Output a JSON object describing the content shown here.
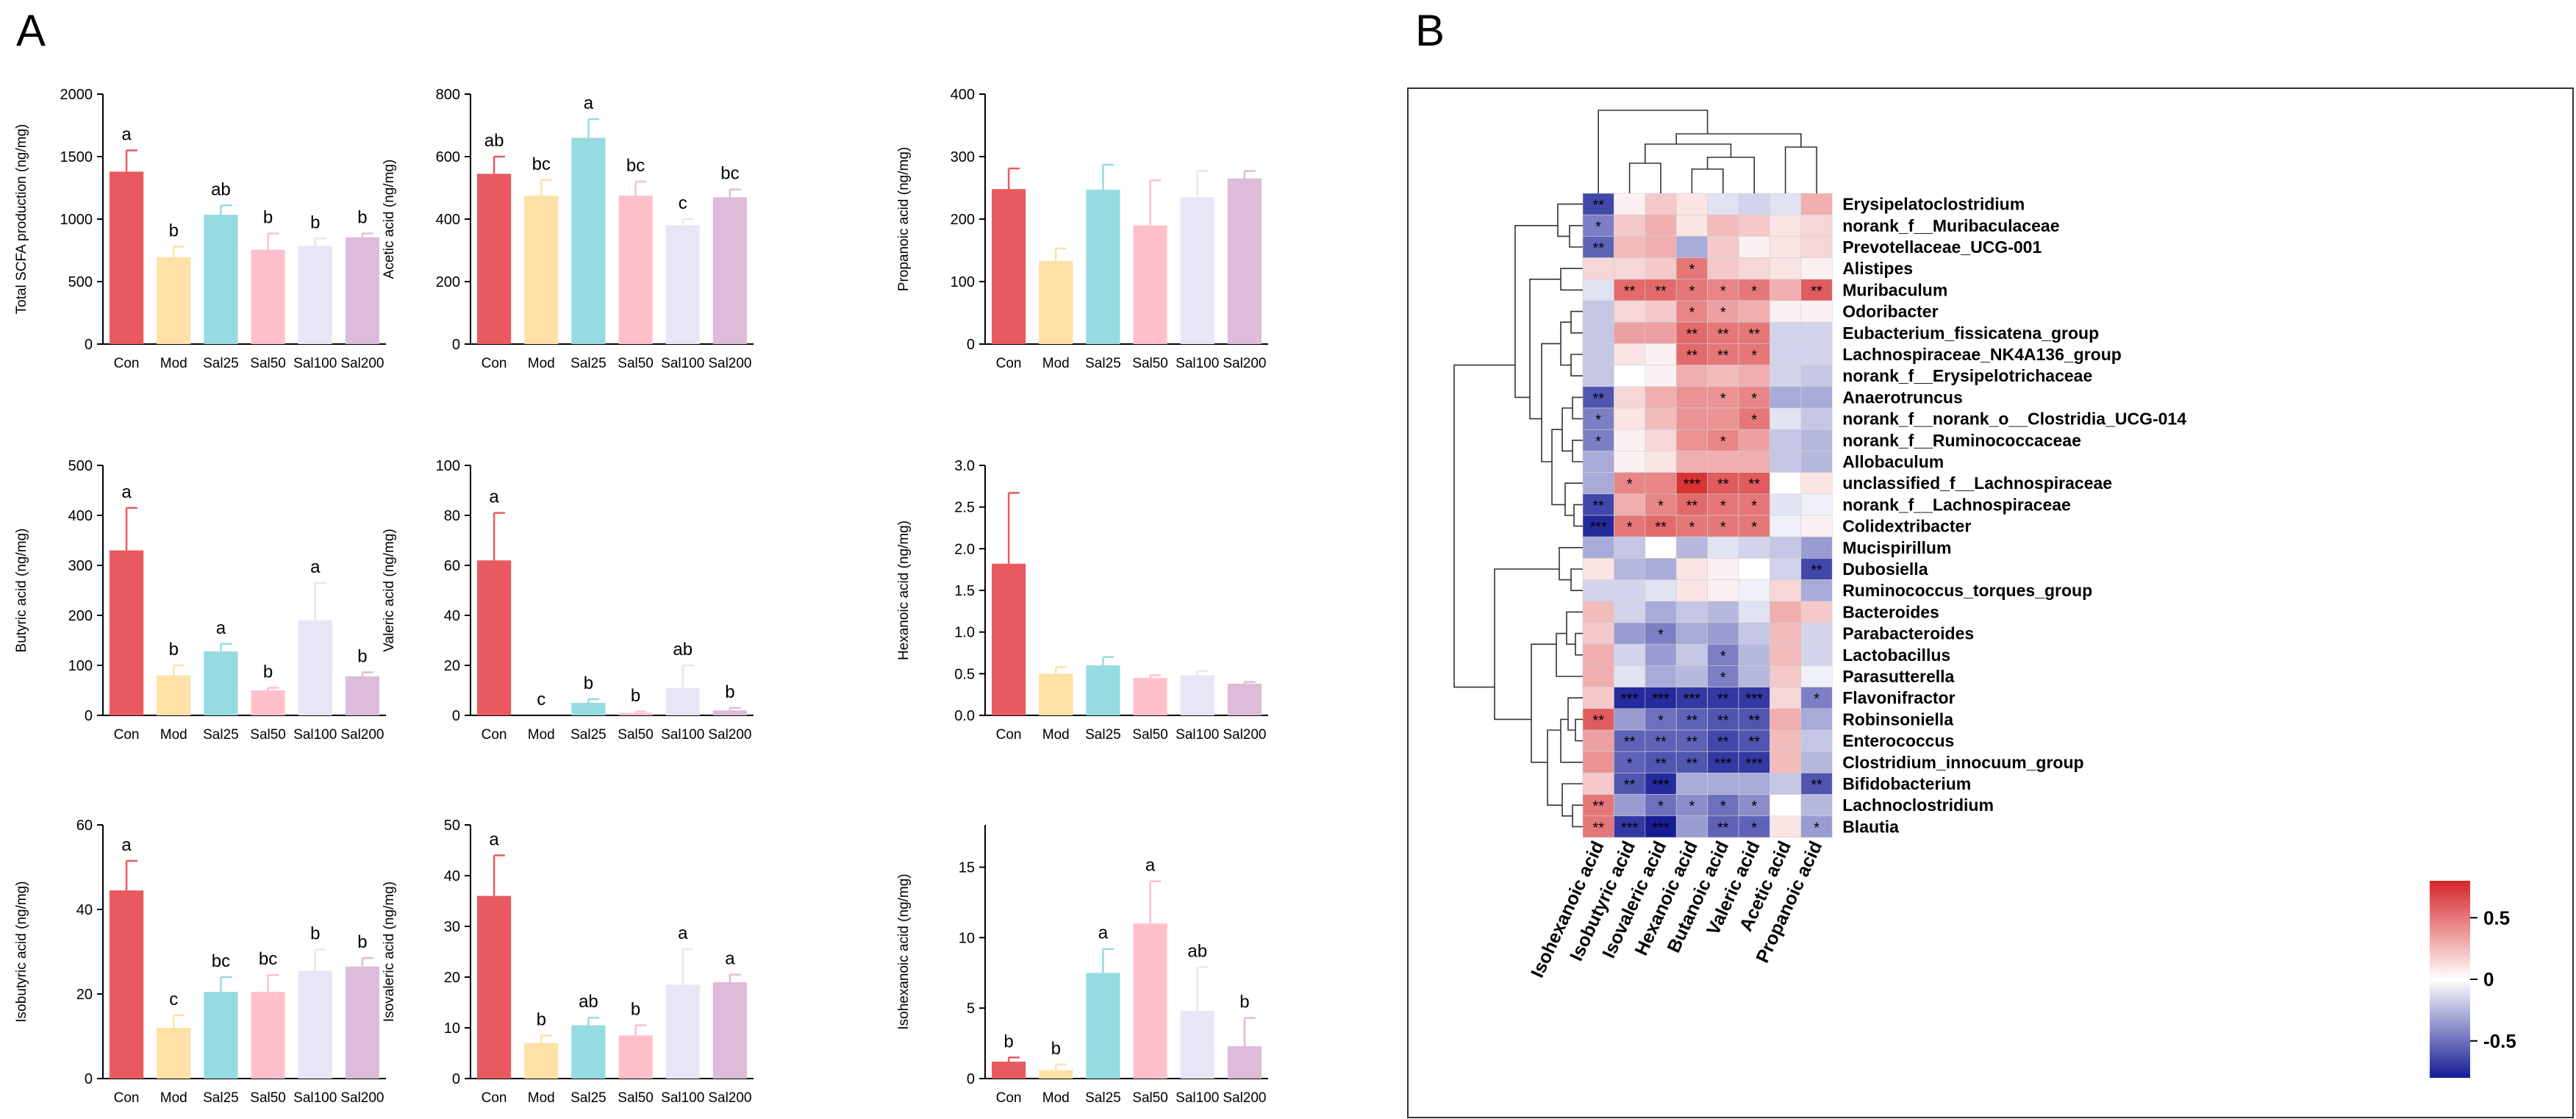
{
  "panels": {
    "a_label": "A",
    "b_label": "B"
  },
  "groups": [
    "Con",
    "Mod",
    "Sal25",
    "Sal50",
    "Sal100",
    "Sal200"
  ],
  "group_colors": [
    "#E85A5F",
    "#FFE0A6",
    "#95DCE0",
    "#FFC0CC",
    "#E6E6F7",
    "#DDBBD9"
  ],
  "chart_data": [
    {
      "type": "bar",
      "ylabel": "Total SCFA production (ng/mg)",
      "ylim": [
        0,
        2000
      ],
      "yticks": [
        0,
        500,
        1000,
        1500,
        2000
      ],
      "categories": [
        "Con",
        "Mod",
        "Sal25",
        "Sal50",
        "Sal100",
        "Sal200"
      ],
      "values": [
        1380,
        695,
        1035,
        755,
        785,
        855
      ],
      "errors": [
        170,
        85,
        75,
        130,
        60,
        30
      ],
      "letters": [
        "a",
        "b",
        "ab",
        "b",
        "b",
        "b"
      ]
    },
    {
      "type": "bar",
      "ylabel": "Acetic acid (ng/mg)",
      "ylim": [
        0,
        800
      ],
      "yticks": [
        0,
        200,
        400,
        600,
        800
      ],
      "categories": [
        "Con",
        "Mod",
        "Sal25",
        "Sal50",
        "Sal100",
        "Sal200"
      ],
      "values": [
        545,
        475,
        660,
        475,
        380,
        470
      ],
      "errors": [
        55,
        50,
        60,
        45,
        20,
        25
      ],
      "letters": [
        "ab",
        "bc",
        "a",
        "bc",
        "c",
        "bc"
      ]
    },
    {
      "type": "bar",
      "ylabel": "Propanoic acid (ng/mg)",
      "ylim": [
        0,
        400
      ],
      "yticks": [
        0,
        100,
        200,
        300,
        400
      ],
      "categories": [
        "Con",
        "Mod",
        "Sal25",
        "Sal50",
        "Sal100",
        "Sal200"
      ],
      "values": [
        248,
        133,
        247,
        190,
        235,
        265
      ],
      "errors": [
        33,
        20,
        40,
        72,
        42,
        12
      ],
      "letters": [
        "",
        "",
        "",
        "",
        "",
        ""
      ]
    },
    {
      "type": "bar",
      "ylabel": "Butyric acid (ng/mg)",
      "ylim": [
        0,
        500
      ],
      "yticks": [
        0,
        100,
        200,
        300,
        400,
        500
      ],
      "categories": [
        "Con",
        "Mod",
        "Sal25",
        "Sal50",
        "Sal100",
        "Sal200"
      ],
      "values": [
        330,
        80,
        128,
        50,
        190,
        78
      ],
      "errors": [
        85,
        20,
        15,
        5,
        75,
        8
      ],
      "letters": [
        "a",
        "b",
        "a",
        "b",
        "a",
        "b"
      ]
    },
    {
      "type": "bar",
      "ylabel": "Valeric acid (ng/mg)",
      "ylim": [
        0,
        100
      ],
      "yticks": [
        0,
        20,
        40,
        60,
        80,
        100
      ],
      "categories": [
        "Con",
        "Mod",
        "Sal25",
        "Sal50",
        "Sal100",
        "Sal200"
      ],
      "values": [
        62,
        0,
        5,
        1,
        11,
        2
      ],
      "errors": [
        19,
        0,
        1.5,
        0.5,
        9,
        1
      ],
      "letters": [
        "a",
        "c",
        "b",
        "b",
        "ab",
        "b"
      ]
    },
    {
      "type": "bar",
      "ylabel": "Hexanoic acid (ng/mg)",
      "ylim": [
        0,
        3.0
      ],
      "yticks": [
        "0.0",
        "0.5",
        "1.0",
        "1.5",
        "2.0",
        "2.5",
        "3.0"
      ],
      "categories": [
        "Con",
        "Mod",
        "Sal25",
        "Sal50",
        "Sal100",
        "Sal200"
      ],
      "values": [
        1.82,
        0.5,
        0.6,
        0.45,
        0.48,
        0.38
      ],
      "errors": [
        0.85,
        0.08,
        0.1,
        0.03,
        0.05,
        0.02
      ],
      "letters": [
        "",
        "",
        "",
        "",
        "",
        ""
      ]
    },
    {
      "type": "bar",
      "ylabel": "Isobutyric acid (ng/mg)",
      "ylim": [
        0,
        60
      ],
      "yticks": [
        0,
        20,
        40,
        60
      ],
      "categories": [
        "Con",
        "Mod",
        "Sal25",
        "Sal50",
        "Sal100",
        "Sal200"
      ],
      "values": [
        44.5,
        12,
        20.5,
        20.5,
        25.5,
        26.5
      ],
      "errors": [
        7,
        3,
        3.5,
        4,
        5,
        2
      ],
      "letters": [
        "a",
        "c",
        "bc",
        "bc",
        "b",
        "b"
      ]
    },
    {
      "type": "bar",
      "ylabel": "Isovaleric acid (ng/mg)",
      "ylim": [
        0,
        50
      ],
      "yticks": [
        0,
        10,
        20,
        30,
        40,
        50
      ],
      "categories": [
        "Con",
        "Mod",
        "Sal25",
        "Sal50",
        "Sal100",
        "Sal200"
      ],
      "values": [
        36,
        7,
        10.5,
        8.5,
        18.5,
        19
      ],
      "errors": [
        8,
        1.5,
        1.5,
        2,
        7,
        1.5
      ],
      "letters": [
        "a",
        "b",
        "ab",
        "b",
        "a",
        "a"
      ]
    },
    {
      "type": "bar",
      "ylabel": "Isohexanoic acid (ng/mg)",
      "ylim": [
        0,
        18
      ],
      "yticks": [
        0,
        5,
        10,
        15
      ],
      "categories": [
        "Con",
        "Mod",
        "Sal25",
        "Sal50",
        "Sal100",
        "Sal200"
      ],
      "values": [
        1.2,
        0.6,
        7.5,
        11,
        4.8,
        2.3
      ],
      "errors": [
        0.3,
        0.4,
        1.7,
        3,
        3.1,
        2
      ],
      "letters": [
        "b",
        "b",
        "a",
        "a",
        "ab",
        "b"
      ]
    },
    {
      "type": "heatmap",
      "columns": [
        "Isohexanoic acid",
        "Isobutyric acid",
        "Isovaleric acid",
        "Hexanoic acid",
        "Butanoic acid",
        "Valeric acid",
        "Acetic acid",
        "Propanoic acid"
      ],
      "rows": [
        "Erysipelatoclostridium",
        "norank_f__Muribaculaceae",
        "Prevotellaceae_UCG-001",
        "Alistipes",
        "Muribaculum",
        "Odoribacter",
        "Eubacterium_fissicatena_group",
        "Lachnospiraceae_NK4A136_group",
        "norank_f__Erysipelotrichaceae",
        "Anaerotruncus",
        "norank_f__norank_o__Clostridia_UCG-014",
        "norank_f__Ruminococcaceae",
        "Allobaculum",
        "unclassified_f__Lachnospiraceae",
        "norank_f__Lachnospiraceae",
        "Colidextribacter",
        "Mucispirillum",
        "Dubosiella",
        "Ruminococcus_torques_group",
        "Bacteroides",
        "Parabacteroides",
        "Lactobacillus",
        "Parasutterella",
        "Flavonifractor",
        "Robinsoniella",
        "Enterococcus",
        "Clostridium_innocuum_group",
        "Bifidobacterium",
        "Lachnoclostridium",
        "Blautia"
      ],
      "values": [
        [
          -0.65,
          0.05,
          0.2,
          0.1,
          -0.1,
          -0.15,
          -0.1,
          0.3
        ],
        [
          -0.45,
          0.2,
          0.3,
          0.1,
          0.25,
          0.2,
          0.1,
          0.15
        ],
        [
          -0.55,
          0.25,
          0.3,
          -0.3,
          0.2,
          0.05,
          0.1,
          0.15
        ],
        [
          0.15,
          0.15,
          0.2,
          0.5,
          0.2,
          0.15,
          0.1,
          0.05
        ],
        [
          -0.1,
          0.55,
          0.55,
          0.5,
          0.45,
          0.5,
          0.3,
          0.6
        ],
        [
          -0.2,
          0.15,
          0.2,
          0.45,
          0.35,
          0.3,
          0.05,
          0.05
        ],
        [
          -0.2,
          0.35,
          0.35,
          0.55,
          0.5,
          0.5,
          -0.15,
          -0.15
        ],
        [
          -0.2,
          0.1,
          0.05,
          0.55,
          0.5,
          0.5,
          -0.15,
          -0.15
        ],
        [
          -0.2,
          0.0,
          0.05,
          0.3,
          0.25,
          0.3,
          -0.15,
          -0.2
        ],
        [
          -0.6,
          0.15,
          0.3,
          0.4,
          0.4,
          0.45,
          -0.3,
          -0.3
        ],
        [
          -0.45,
          0.1,
          0.25,
          0.4,
          0.4,
          0.5,
          -0.1,
          -0.2
        ],
        [
          -0.45,
          0.05,
          0.15,
          0.4,
          0.45,
          0.35,
          -0.2,
          -0.25
        ],
        [
          -0.3,
          0.05,
          0.1,
          0.3,
          0.3,
          0.3,
          -0.2,
          -0.25
        ],
        [
          -0.3,
          0.45,
          0.45,
          0.75,
          0.6,
          0.6,
          0.0,
          0.1
        ],
        [
          -0.65,
          0.3,
          0.45,
          0.55,
          0.5,
          0.5,
          -0.1,
          -0.05
        ],
        [
          -0.75,
          0.5,
          0.55,
          0.5,
          0.5,
          0.5,
          -0.05,
          0.05
        ],
        [
          -0.3,
          -0.2,
          0.0,
          -0.25,
          -0.1,
          -0.15,
          -0.2,
          -0.35
        ],
        [
          0.1,
          -0.25,
          -0.3,
          0.1,
          0.05,
          0.0,
          -0.15,
          -0.65
        ],
        [
          -0.15,
          -0.15,
          -0.1,
          0.1,
          0.05,
          -0.05,
          0.15,
          -0.3
        ],
        [
          0.25,
          -0.15,
          -0.3,
          -0.2,
          -0.25,
          -0.1,
          0.3,
          0.2
        ],
        [
          0.2,
          -0.35,
          -0.45,
          -0.3,
          -0.35,
          -0.2,
          0.25,
          -0.15
        ],
        [
          0.3,
          -0.15,
          -0.35,
          -0.2,
          -0.45,
          -0.25,
          0.25,
          -0.15
        ],
        [
          0.3,
          -0.1,
          -0.3,
          -0.25,
          -0.45,
          -0.25,
          0.2,
          -0.05
        ],
        [
          0.2,
          -0.75,
          -0.75,
          -0.7,
          -0.7,
          -0.7,
          0.15,
          -0.45
        ],
        [
          0.6,
          -0.35,
          -0.5,
          -0.55,
          -0.6,
          -0.6,
          0.3,
          -0.3
        ],
        [
          0.35,
          -0.55,
          -0.55,
          -0.55,
          -0.65,
          -0.6,
          0.25,
          -0.2
        ],
        [
          0.4,
          -0.55,
          -0.6,
          -0.6,
          -0.7,
          -0.7,
          0.25,
          -0.25
        ],
        [
          0.2,
          -0.6,
          -0.75,
          -0.3,
          -0.3,
          -0.3,
          -0.2,
          -0.6
        ],
        [
          0.5,
          -0.35,
          -0.5,
          -0.4,
          -0.5,
          -0.4,
          0.0,
          -0.25
        ],
        [
          0.5,
          -0.7,
          -0.8,
          -0.35,
          -0.55,
          -0.55,
          0.1,
          -0.35
        ]
      ],
      "stars": [
        [
          "**",
          "",
          "",
          "",
          "",
          "",
          "",
          ""
        ],
        [
          "*",
          "",
          "",
          "",
          "",
          "",
          "",
          ""
        ],
        [
          "**",
          "",
          "",
          "",
          "",
          "",
          "",
          ""
        ],
        [
          "",
          "",
          "",
          "*",
          "",
          "",
          "",
          ""
        ],
        [
          "",
          "**",
          "**",
          "*",
          "*",
          "*",
          "",
          "**"
        ],
        [
          "",
          "",
          "",
          "*",
          "*",
          "",
          "",
          ""
        ],
        [
          "",
          "",
          "",
          "**",
          "**",
          "**",
          "",
          ""
        ],
        [
          "",
          "",
          "",
          "**",
          "**",
          "*",
          "",
          ""
        ],
        [
          "",
          "",
          "",
          "",
          "",
          "",
          "",
          ""
        ],
        [
          "**",
          "",
          "",
          "",
          "*",
          "*",
          "",
          ""
        ],
        [
          "*",
          "",
          "",
          "",
          "",
          "*",
          "",
          ""
        ],
        [
          "*",
          "",
          "",
          "",
          "*",
          "",
          "",
          ""
        ],
        [
          "",
          "",
          "",
          "",
          "",
          "",
          "",
          ""
        ],
        [
          "",
          "*",
          "",
          "***",
          "**",
          "**",
          "",
          ""
        ],
        [
          "**",
          "",
          "*",
          "**",
          "*",
          "*",
          "",
          ""
        ],
        [
          "***",
          "*",
          "**",
          "*",
          "*",
          "*",
          "",
          ""
        ],
        [
          "",
          "",
          "",
          "",
          "",
          "",
          "",
          ""
        ],
        [
          "",
          "",
          "",
          "",
          "",
          "",
          "",
          "**"
        ],
        [
          "",
          "",
          "",
          "",
          "",
          "",
          "",
          ""
        ],
        [
          "",
          "",
          "",
          "",
          "",
          "",
          "",
          ""
        ],
        [
          "",
          "",
          "*",
          "",
          "",
          "",
          "",
          ""
        ],
        [
          "",
          "",
          "",
          "",
          "*",
          "",
          "",
          ""
        ],
        [
          "",
          "",
          "",
          "",
          "*",
          "",
          "",
          ""
        ],
        [
          "",
          "***",
          "***",
          "***",
          "**",
          "***",
          "",
          "*"
        ],
        [
          "**",
          "",
          "*",
          "**",
          "**",
          "**",
          "",
          ""
        ],
        [
          "",
          "**",
          "**",
          "**",
          "**",
          "**",
          "",
          ""
        ],
        [
          "",
          "*",
          "**",
          "**",
          "***",
          "***",
          "",
          ""
        ],
        [
          "",
          "**",
          "***",
          "",
          "",
          "",
          "",
          "**"
        ],
        [
          "**",
          "",
          "*",
          "*",
          "*",
          "*",
          "",
          ""
        ],
        [
          "**",
          "***",
          "***",
          "",
          "**",
          "*",
          "",
          "*"
        ]
      ],
      "legend": {
        "ticks": [
          "0.5",
          "0",
          "-0.5"
        ],
        "tick_values": [
          0.5,
          0,
          -0.5
        ],
        "range": [
          -0.8,
          0.8
        ]
      }
    }
  ]
}
